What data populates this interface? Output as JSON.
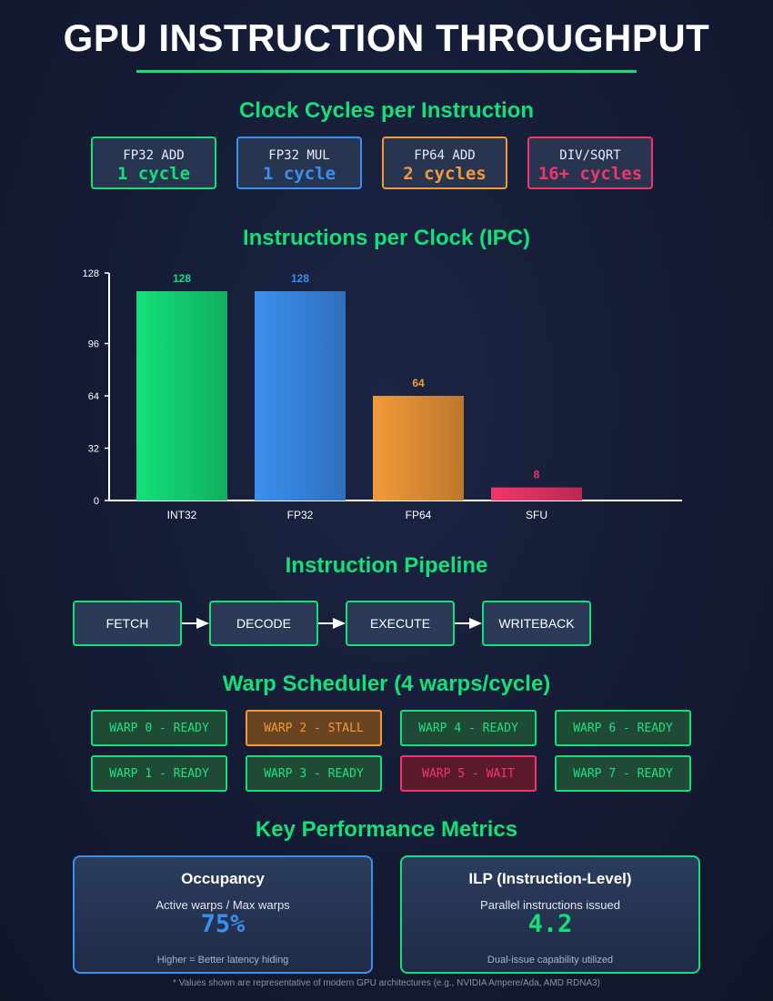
{
  "title": "GPU INSTRUCTION THROUGHPUT",
  "cycles_section": {
    "title": "Clock Cycles per Instruction",
    "cards": [
      {
        "label": "FP32 ADD",
        "value": "1 cycle",
        "color": "#14e07a"
      },
      {
        "label": "FP32 MUL",
        "value": "1 cycle",
        "color": "#3b8ff0"
      },
      {
        "label": "FP64 ADD",
        "value": "2 cycles",
        "color": "#f29a3a"
      },
      {
        "label": "DIV/SQRT",
        "value": "16+ cycles",
        "color": "#f0366a"
      }
    ]
  },
  "chart_section": {
    "title": "Instructions per Clock (IPC)"
  },
  "chart_data": {
    "type": "bar",
    "title": "Instructions per Clock (IPC)",
    "categories": [
      "INT32",
      "FP32",
      "FP64",
      "SFU"
    ],
    "values": [
      128,
      128,
      64,
      8
    ],
    "value_labels": [
      "128",
      "128",
      "64",
      "8"
    ],
    "colors": [
      "#14e07a",
      "#3b8ff0",
      "#f29a3a",
      "#f0366a"
    ],
    "ylim": [
      0,
      128
    ],
    "yticks": [
      0,
      32,
      64,
      96,
      128
    ],
    "grid": false
  },
  "pipeline": {
    "title": "Instruction Pipeline",
    "stages": [
      "FETCH",
      "DECODE",
      "EXECUTE",
      "WRITEBACK"
    ]
  },
  "scheduler": {
    "title": "Warp Scheduler (4 warps/cycle)",
    "warps": [
      {
        "label": "WARP 0 - READY",
        "state": "ready"
      },
      {
        "label": "WARP 2 - STALL",
        "state": "stall"
      },
      {
        "label": "WARP 4 - READY",
        "state": "ready"
      },
      {
        "label": "WARP 6 - READY",
        "state": "ready"
      },
      {
        "label": "WARP 1 - READY",
        "state": "ready"
      },
      {
        "label": "WARP 3 - READY",
        "state": "ready"
      },
      {
        "label": "WARP 5 - WAIT",
        "state": "wait"
      },
      {
        "label": "WARP 7 - READY",
        "state": "ready"
      }
    ]
  },
  "metrics": {
    "title": "Key Performance Metrics",
    "occupancy": {
      "title": "Occupancy",
      "subtitle": "Active warps / Max warps",
      "value": "75%",
      "footer": "Higher = Better latency hiding",
      "color": "#3b8ff0"
    },
    "ilp": {
      "title": "ILP (Instruction-Level)",
      "subtitle": "Parallel instructions issued",
      "value": "4.2",
      "footer": "Dual-issue capability utilized",
      "color": "#14e07a"
    }
  },
  "footnote": "* Values shown are representative of modern GPU architectures (e.g., NVIDIA Ampere/Ada, AMD RDNA3)"
}
